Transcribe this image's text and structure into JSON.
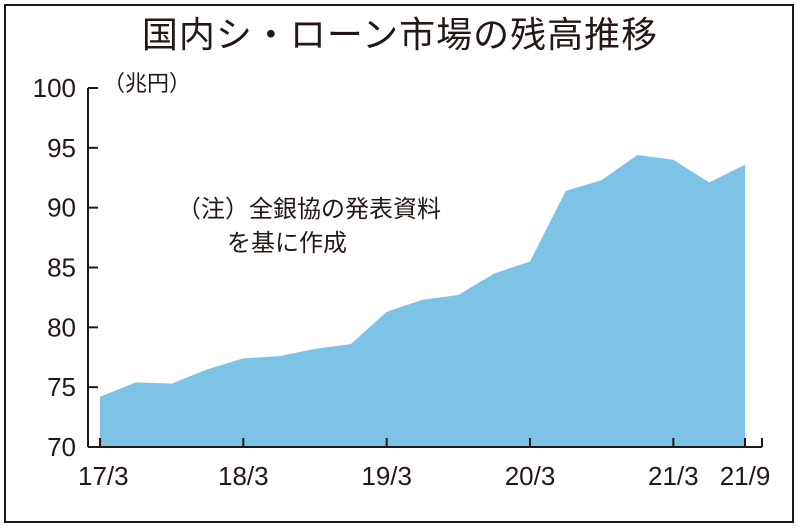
{
  "chart_data": {
    "type": "area",
    "title": "国内シ・ローン市場の残高推移",
    "unit_label": "（兆円）",
    "note_line1": "（注）全銀協の発表資料",
    "note_line2": "を基に作成",
    "ylim": [
      70,
      100
    ],
    "yticks": [
      "70",
      "75",
      "80",
      "85",
      "90",
      "95",
      "100"
    ],
    "xtick_labels": [
      "17/3",
      "18/3",
      "19/3",
      "20/3",
      "21/3",
      "21/9"
    ],
    "xtick_index": [
      0,
      4,
      8,
      12,
      16,
      18
    ],
    "x": [
      "17/3",
      "17/6",
      "17/9",
      "17/12",
      "18/3",
      "18/6",
      "18/9",
      "18/12",
      "19/3",
      "19/6",
      "19/9",
      "19/12",
      "20/3",
      "20/6",
      "20/9",
      "20/12",
      "21/3",
      "21/6",
      "21/9"
    ],
    "values": [
      74.2,
      75.4,
      75.3,
      76.5,
      77.4,
      77.6,
      78.2,
      78.6,
      81.3,
      82.3,
      82.7,
      84.5,
      85.5,
      91.4,
      92.3,
      94.4,
      94.0,
      92.1,
      93.6
    ],
    "fill_color": "#7cc3e6",
    "axis_color": "#231815"
  }
}
